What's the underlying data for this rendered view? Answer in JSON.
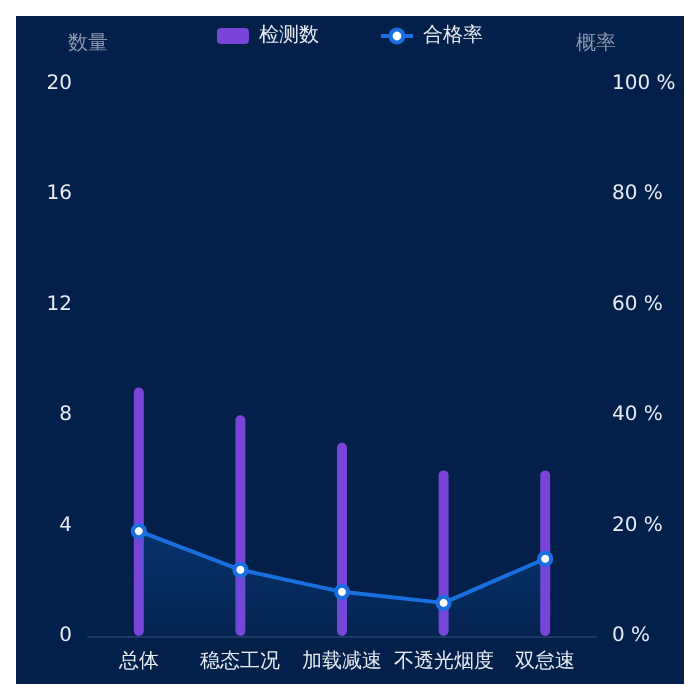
{
  "chart_data": {
    "type": "bar",
    "categories": [
      "总体",
      "稳态工况",
      "加载减速",
      "不透光烟度",
      "双怠速"
    ],
    "series": [
      {
        "name": "检测数",
        "color": "#7b44d8",
        "values": [
          9,
          8,
          7,
          6,
          6
        ]
      },
      {
        "name": "合格率",
        "type": "area",
        "axis": "y2",
        "color": "#1a6fe0",
        "values": [
          19,
          12,
          8,
          6,
          14
        ]
      }
    ],
    "ylabel": "数量",
    "y2label": "概率",
    "ylim": [
      0,
      20
    ],
    "yticks": [
      0,
      4,
      8,
      12,
      16,
      20
    ],
    "y2lim": [
      0,
      100
    ],
    "y2ticks": [
      {
        "value": 0,
        "label": "0 %"
      },
      {
        "value": 20,
        "label": "20 %"
      },
      {
        "value": 40,
        "label": "40 %"
      },
      {
        "value": 60,
        "label": "60 %"
      },
      {
        "value": 80,
        "label": "80 %"
      },
      {
        "value": 100,
        "label": "100 %"
      }
    ],
    "legend": "top",
    "grid": false,
    "marker": "circle"
  }
}
